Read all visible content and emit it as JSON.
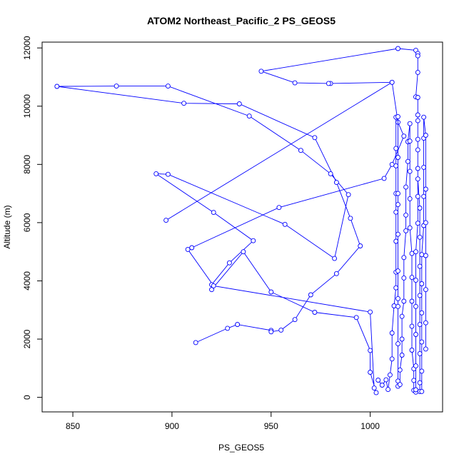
{
  "chart_data": {
    "type": "line",
    "title": "ATOM2 Northeast_Pacific_2 PS_GEOS5",
    "xlabel": "PS_GEOS5",
    "ylabel": "Altitude (m)",
    "xlim": [
      834.5,
      1036.5
    ],
    "ylim": [
      -500,
      12200
    ],
    "x_ticks": [
      850,
      900,
      950,
      1000
    ],
    "y_ticks": [
      0,
      2000,
      4000,
      6000,
      8000,
      10000,
      12000
    ],
    "series_color": "#0000ff",
    "markers": "open-circle",
    "grid": false,
    "series": [
      {
        "points": [
          [
            912,
            1880
          ],
          [
            928,
            2370
          ],
          [
            933,
            2500
          ],
          [
            933,
            2500
          ],
          [
            950,
            2300
          ],
          [
            950,
            2250
          ],
          [
            955,
            2310
          ],
          [
            962,
            2670
          ],
          [
            970,
            3520
          ],
          [
            983,
            4250
          ],
          [
            995,
            5200
          ],
          [
            990,
            6150
          ],
          [
            983,
            7380
          ],
          [
            972,
            8920
          ],
          [
            934,
            10080
          ],
          [
            906,
            10100
          ],
          [
            842,
            10680
          ],
          [
            872,
            10690
          ],
          [
            898,
            10690
          ],
          [
            939,
            9660
          ],
          [
            965,
            8480
          ],
          [
            980,
            7680
          ],
          [
            989,
            6960
          ],
          [
            982,
            4770
          ],
          [
            957,
            5940
          ],
          [
            898,
            7660
          ],
          [
            892,
            7680
          ],
          [
            921,
            6350
          ],
          [
            941,
            5380
          ],
          [
            929,
            4620
          ],
          [
            920,
            3870
          ],
          [
            920,
            3700
          ],
          [
            936,
            5000
          ],
          [
            950,
            3620
          ],
          [
            972,
            2920
          ],
          [
            993,
            2740
          ],
          [
            1000,
            1610
          ],
          [
            1000,
            860
          ],
          [
            1003,
            160
          ],
          [
            1002,
            320
          ],
          [
            1000,
            2930
          ],
          [
            921,
            3830
          ],
          [
            908,
            5080
          ],
          [
            910,
            5140
          ],
          [
            954,
            6520
          ],
          [
            1007,
            7520
          ],
          [
            1011,
            8000
          ],
          [
            1017,
            8970
          ],
          [
            1014,
            9450
          ],
          [
            1011,
            10820
          ],
          [
            980,
            10780
          ],
          [
            979,
            10780
          ],
          [
            962,
            10800
          ],
          [
            945,
            11200
          ],
          [
            1014,
            11980
          ],
          [
            1023,
            11920
          ],
          [
            1024,
            11810
          ],
          [
            1024,
            11730
          ],
          [
            1024,
            11160
          ],
          [
            1023,
            10320
          ]
        ]
      },
      {
        "points": [
          [
            897,
            6080
          ],
          [
            1011,
            10820
          ]
        ]
      },
      {
        "points": [
          [
            1004,
            590
          ],
          [
            1006,
            420
          ],
          [
            1008,
            600
          ],
          [
            1009,
            270
          ],
          [
            1010,
            770
          ],
          [
            1011,
            1320
          ],
          [
            1011,
            2210
          ],
          [
            1012,
            3140
          ],
          [
            1013,
            3760
          ],
          [
            1013,
            4300
          ],
          [
            1013,
            5360
          ],
          [
            1013,
            6360
          ],
          [
            1013,
            7000
          ],
          [
            1013,
            7950
          ],
          [
            1013,
            8550
          ],
          [
            1013,
            9620
          ],
          [
            1014,
            9640
          ],
          [
            1014,
            8240
          ],
          [
            1014,
            7000
          ],
          [
            1014,
            6620
          ],
          [
            1014,
            5600
          ],
          [
            1014,
            4340
          ],
          [
            1014,
            3390
          ],
          [
            1014,
            3120
          ],
          [
            1014,
            1840
          ],
          [
            1014,
            560
          ],
          [
            1014,
            380
          ],
          [
            1015,
            440
          ],
          [
            1015,
            940
          ],
          [
            1016,
            1450
          ],
          [
            1016,
            2000
          ],
          [
            1016,
            2780
          ],
          [
            1017,
            3300
          ],
          [
            1017,
            4100
          ],
          [
            1017,
            4800
          ],
          [
            1018,
            5720
          ],
          [
            1018,
            6260
          ],
          [
            1018,
            7220
          ],
          [
            1019,
            8100
          ],
          [
            1019,
            8780
          ],
          [
            1020,
            9400
          ],
          [
            1020,
            8800
          ],
          [
            1020,
            7760
          ],
          [
            1020,
            6820
          ],
          [
            1020,
            5820
          ],
          [
            1021,
            4940
          ],
          [
            1021,
            4120
          ],
          [
            1021,
            3300
          ],
          [
            1021,
            2440
          ],
          [
            1021,
            1620
          ],
          [
            1022,
            980
          ],
          [
            1022,
            580
          ],
          [
            1022,
            240
          ],
          [
            1023,
            180
          ],
          [
            1023,
            260
          ],
          [
            1023,
            1080
          ],
          [
            1023,
            2160
          ],
          [
            1023,
            3120
          ],
          [
            1023,
            4020
          ],
          [
            1023,
            5000
          ],
          [
            1024,
            5980
          ],
          [
            1024,
            6900
          ],
          [
            1024,
            7860
          ],
          [
            1024,
            8860
          ],
          [
            1024,
            9700
          ],
          [
            1024,
            10300
          ],
          [
            1024,
            9500
          ],
          [
            1024,
            8500
          ],
          [
            1024,
            7500
          ],
          [
            1025,
            6500
          ],
          [
            1025,
            5500
          ],
          [
            1025,
            4500
          ],
          [
            1025,
            3500
          ],
          [
            1025,
            2500
          ],
          [
            1025,
            1500
          ],
          [
            1025,
            500
          ],
          [
            1025,
            200
          ],
          [
            1026,
            200
          ],
          [
            1026,
            900
          ],
          [
            1026,
            1900
          ],
          [
            1026,
            2900
          ],
          [
            1026,
            3900
          ],
          [
            1026,
            4900
          ],
          [
            1027,
            5900
          ],
          [
            1027,
            6900
          ],
          [
            1027,
            7900
          ],
          [
            1027,
            8900
          ],
          [
            1027,
            9620
          ],
          [
            1028,
            9000
          ],
          [
            1028,
            7150
          ],
          [
            1028,
            6000
          ],
          [
            1028,
            4870
          ],
          [
            1028,
            3700
          ],
          [
            1028,
            2560
          ],
          [
            1028,
            1660
          ]
        ]
      }
    ]
  }
}
